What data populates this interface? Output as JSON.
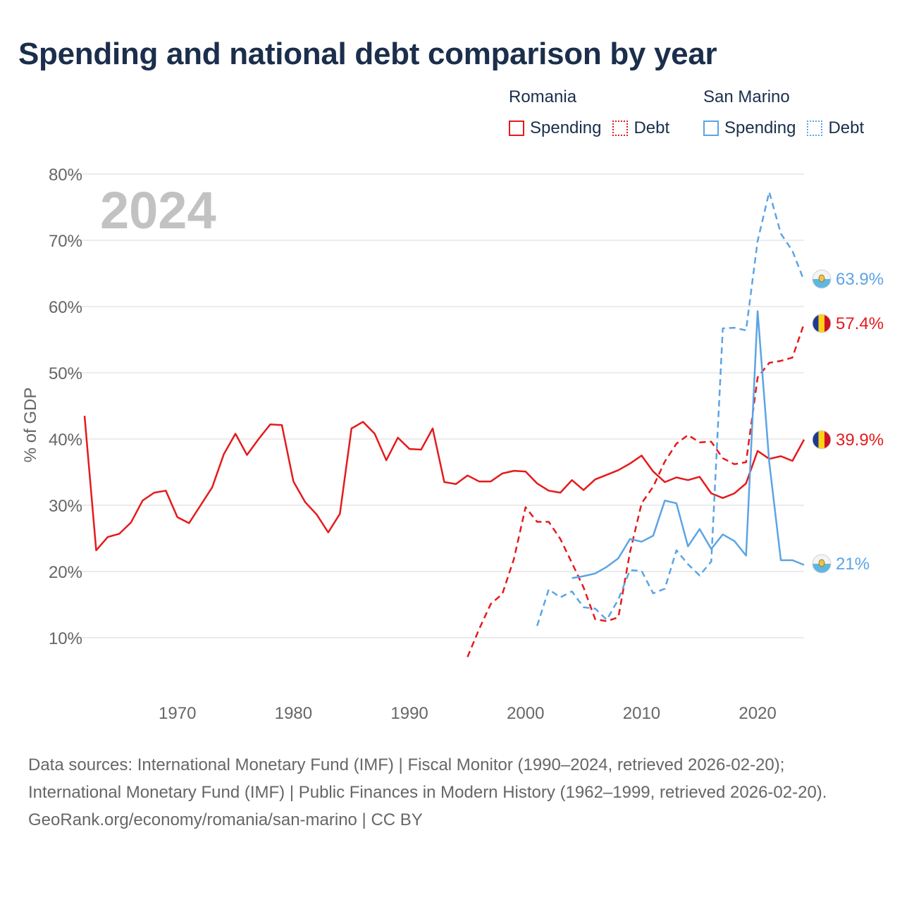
{
  "title": "Spending and national debt comparison by year",
  "legend": [
    {
      "country": "Romania",
      "color": "#e41a1c",
      "spending_label": "Spending",
      "debt_label": "Debt"
    },
    {
      "country": "San Marino",
      "color": "#5ba4e5",
      "spending_label": "Spending",
      "debt_label": "Debt"
    }
  ],
  "footer": {
    "sources": "Data sources: International Monetary Fund (IMF) | Fiscal Monitor (1990–2024, retrieved 2026-02-20); International Monetary Fund (IMF) | Public Finances in Modern History (1962–1999, retrieved 2026-02-20).",
    "credit": "GeoRank.org/economy/romania/san-marino | CC BY"
  },
  "chart_data": {
    "type": "line",
    "title": "Spending and national debt comparison by year",
    "year_watermark": "2024",
    "ylabel": "% of GDP",
    "xlabel": "",
    "xlim": [
      1962,
      2024
    ],
    "ylim": [
      3,
      80
    ],
    "yticks": [
      10,
      20,
      30,
      40,
      50,
      60,
      70,
      80
    ],
    "ytick_labels": [
      "10%",
      "20%",
      "30%",
      "40%",
      "50%",
      "60%",
      "70%",
      "80%"
    ],
    "xticks": [
      1970,
      1980,
      1990,
      2000,
      2010,
      2020
    ],
    "xtick_labels": [
      "1970",
      "1980",
      "1990",
      "2000",
      "2010",
      "2020"
    ],
    "grid": true,
    "series": [
      {
        "name": "Romania Spending",
        "country": "Romania",
        "metric": "Spending",
        "color": "#e41a1c",
        "dash": false,
        "end_label": "39.9%",
        "x": [
          1962,
          1963,
          1964,
          1965,
          1966,
          1967,
          1968,
          1969,
          1970,
          1971,
          1972,
          1973,
          1974,
          1975,
          1976,
          1977,
          1978,
          1979,
          1980,
          1981,
          1982,
          1983,
          1984,
          1985,
          1986,
          1987,
          1988,
          1989,
          1990,
          1991,
          1992,
          1993,
          1994,
          1995,
          1996,
          1997,
          1998,
          1999,
          2000,
          2001,
          2002,
          2003,
          2004,
          2005,
          2006,
          2007,
          2008,
          2009,
          2010,
          2011,
          2012,
          2013,
          2014,
          2015,
          2016,
          2017,
          2018,
          2019,
          2020,
          2021,
          2022,
          2023,
          2024
        ],
        "y": [
          43.5,
          23.2,
          25.2,
          25.7,
          27.4,
          30.7,
          31.9,
          32.2,
          28.2,
          27.3,
          30,
          32.7,
          37.7,
          40.8,
          37.6,
          40,
          42.2,
          42.1,
          33.6,
          30.5,
          28.6,
          25.9,
          28.7,
          41.6,
          42.6,
          40.8,
          36.8,
          40.2,
          38.5,
          38.4,
          41.6,
          33.5,
          33.2,
          34.5,
          33.6,
          33.6,
          34.8,
          35.2,
          35.1,
          33.3,
          32.2,
          31.9,
          33.8,
          32.3,
          33.9,
          34.6,
          35.3,
          36.3,
          37.5,
          35.1,
          33.5,
          34.2,
          33.8,
          34.3,
          31.8,
          31.1,
          31.8,
          33.3,
          38.2,
          37,
          37.4,
          36.7,
          39.9
        ]
      },
      {
        "name": "Romania Debt",
        "country": "Romania",
        "metric": "Debt",
        "color": "#e41a1c",
        "dash": true,
        "end_label": "57.4%",
        "x": [
          1995,
          1996,
          1997,
          1998,
          1999,
          2000,
          2001,
          2002,
          2003,
          2004,
          2005,
          2006,
          2007,
          2008,
          2009,
          2010,
          2011,
          2012,
          2013,
          2014,
          2015,
          2016,
          2017,
          2018,
          2019,
          2020,
          2021,
          2022,
          2023,
          2024
        ],
        "y": [
          7.1,
          11.3,
          15.1,
          16.6,
          21.9,
          29.7,
          27.5,
          27.5,
          24.9,
          21.3,
          17.6,
          12.8,
          12.5,
          13.1,
          22.9,
          30.3,
          32.8,
          36.6,
          39.3,
          40.6,
          39.5,
          39.6,
          37.1,
          36.2,
          36.5,
          49.3,
          51.5,
          51.8,
          52.3,
          57.4
        ]
      },
      {
        "name": "San Marino Spending",
        "country": "San Marino",
        "metric": "Spending",
        "color": "#5ba4e5",
        "dash": false,
        "end_label": "21%",
        "x": [
          2004,
          2005,
          2006,
          2007,
          2008,
          2009,
          2010,
          2011,
          2012,
          2013,
          2014,
          2015,
          2016,
          2017,
          2018,
          2019,
          2020,
          2021,
          2022,
          2023,
          2024
        ],
        "y": [
          19,
          19.3,
          19.7,
          20.7,
          22,
          24.9,
          24.5,
          25.4,
          30.7,
          30.3,
          23.8,
          26.4,
          23.4,
          25.6,
          24.6,
          22.4,
          59.3,
          36.5,
          21.7,
          21.7,
          21
        ]
      },
      {
        "name": "San Marino Debt",
        "country": "San Marino",
        "metric": "Debt",
        "color": "#5ba4e5",
        "dash": true,
        "end_label": "63.9%",
        "x": [
          2001,
          2002,
          2003,
          2004,
          2005,
          2006,
          2007,
          2008,
          2009,
          2010,
          2011,
          2012,
          2013,
          2014,
          2015,
          2016,
          2017,
          2018,
          2019,
          2020,
          2021,
          2022,
          2023,
          2024
        ],
        "y": [
          11.8,
          17.3,
          16.1,
          17,
          14.6,
          14.4,
          12.7,
          15.8,
          20.2,
          20.1,
          16.7,
          17.4,
          23.2,
          21.1,
          19.4,
          21.5,
          56.7,
          56.8,
          56.4,
          69.9,
          77.3,
          71,
          68.4,
          63.9
        ]
      }
    ]
  }
}
